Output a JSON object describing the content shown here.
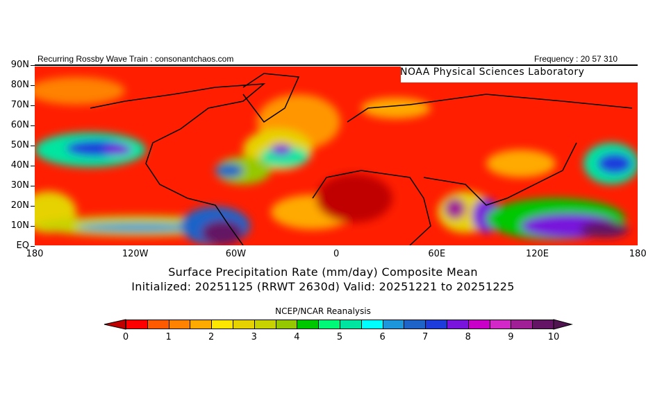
{
  "header": {
    "left": "Recurring Rossby Wave Train : consonantchaos.com",
    "right": "Frequency : 20 57 310",
    "credit": "NOAA Physical Sciences Laboratory"
  },
  "lat_labels": [
    "90N",
    "80N",
    "70N",
    "60N",
    "50N",
    "40N",
    "30N",
    "20N",
    "10N",
    "EQ"
  ],
  "lon_labels": [
    "180",
    "120W",
    "60W",
    "0",
    "60E",
    "120E",
    "180"
  ],
  "title_line1": "Surface Precipitation Rate (mm/day) Composite Mean",
  "title_line2": "Initialized: 20251125 (RRWT 2630d) Valid: 20251221 to 20251225",
  "colorbar": {
    "title": "NCEP/NCAR Reanalysis",
    "labels": [
      "0",
      "1",
      "2",
      "3",
      "4",
      "5",
      "6",
      "7",
      "8",
      "9",
      "10"
    ],
    "colors": [
      "#ff0000",
      "#ff5a00",
      "#ff8200",
      "#ffaa00",
      "#ffe600",
      "#e6d200",
      "#c8d200",
      "#96c800",
      "#00c800",
      "#00fa78",
      "#00e6a0",
      "#00ffff",
      "#1e96dc",
      "#1e64c8",
      "#1e3cdc",
      "#7814dc",
      "#c800c8",
      "#d228c8",
      "#a01e96",
      "#641464"
    ],
    "under_color": "#c00000",
    "over_color": "#501450"
  }
}
